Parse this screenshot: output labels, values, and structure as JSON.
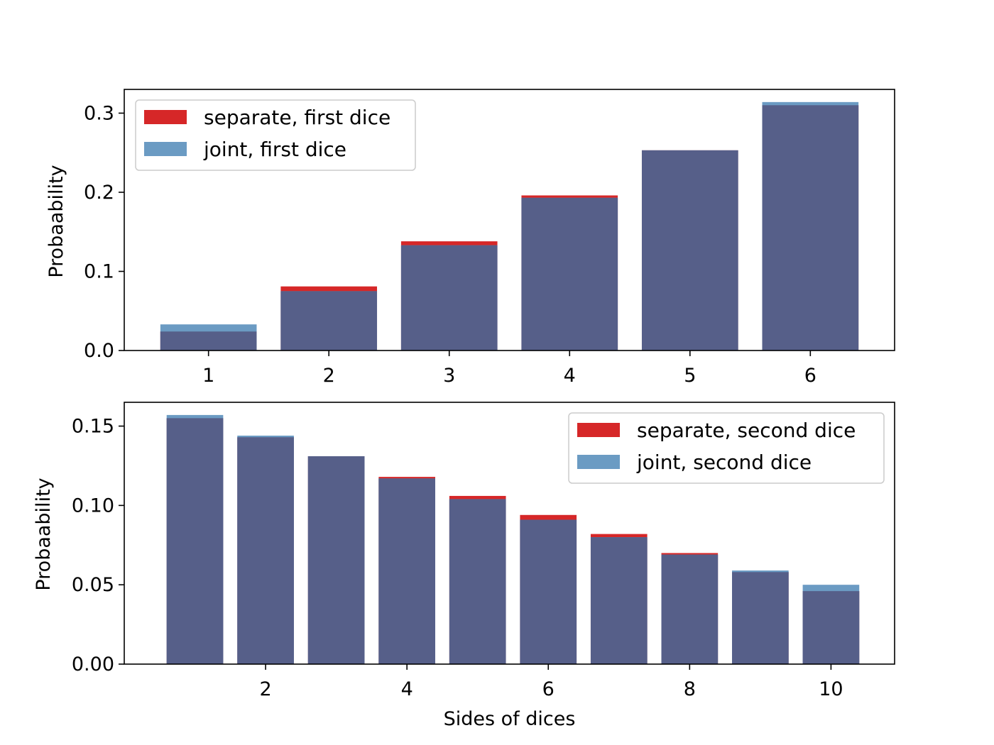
{
  "chart_data": [
    {
      "type": "bar",
      "xlabel": "",
      "ylabel": "Probaability",
      "x": [
        1,
        2,
        3,
        4,
        5,
        6
      ],
      "xticks": [
        1,
        2,
        3,
        4,
        5,
        6
      ],
      "xlim": [
        0.3,
        6.7
      ],
      "ylim": [
        0.0,
        0.33
      ],
      "yticks": [
        "0.0",
        "0.1",
        "0.2",
        "0.3"
      ],
      "legend_position": "top-left",
      "grid": false,
      "series": [
        {
          "name": "separate, first dice",
          "color": "#d62728",
          "values": [
            0.024,
            0.081,
            0.138,
            0.196,
            0.253,
            0.31
          ]
        },
        {
          "name": "joint, first dice",
          "color": "#6b9bc3",
          "values": [
            0.033,
            0.075,
            0.133,
            0.193,
            0.253,
            0.314
          ]
        }
      ]
    },
    {
      "type": "bar",
      "xlabel": "Sides of dices",
      "ylabel": "Probaability",
      "x": [
        1,
        2,
        3,
        4,
        5,
        6,
        7,
        8,
        9,
        10
      ],
      "xticks": [
        2,
        4,
        6,
        8,
        10
      ],
      "xlim": [
        0.0,
        10.9
      ],
      "ylim": [
        0.0,
        0.165
      ],
      "yticks": [
        "0.00",
        "0.05",
        "0.10",
        "0.15"
      ],
      "legend_position": "top-right",
      "grid": false,
      "series": [
        {
          "name": "separate, second dice",
          "color": "#d62728",
          "values": [
            0.155,
            0.143,
            0.131,
            0.118,
            0.106,
            0.094,
            0.082,
            0.07,
            0.058,
            0.046
          ]
        },
        {
          "name": "joint, second dice",
          "color": "#6b9bc3",
          "values": [
            0.157,
            0.144,
            0.131,
            0.117,
            0.104,
            0.091,
            0.08,
            0.069,
            0.059,
            0.05
          ]
        }
      ]
    }
  ],
  "colors": {
    "separate": "#d62728",
    "joint": "#6b9bc3",
    "overlap": "#565f89"
  }
}
